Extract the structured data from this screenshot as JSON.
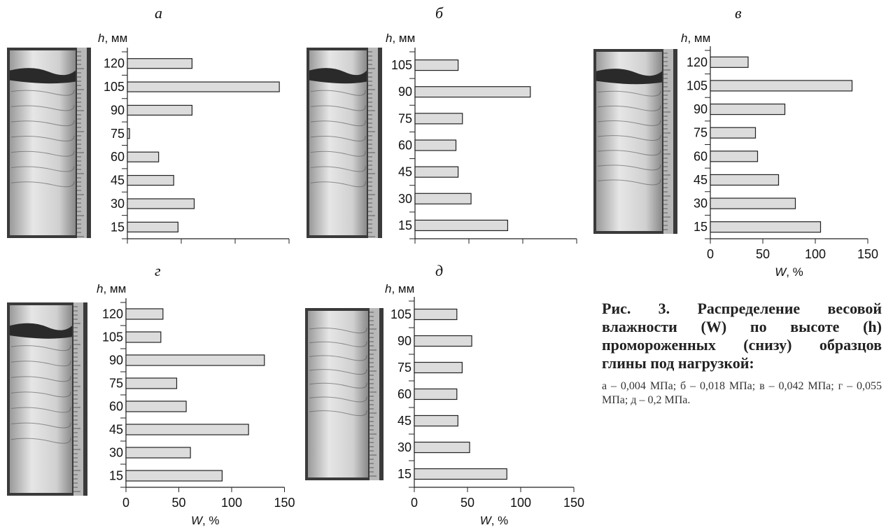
{
  "panels": [
    {
      "letter": "а",
      "ylabel_h": "h",
      "ylabel_unit": ", мм",
      "xlabel_w": "",
      "xlabel_unit": "",
      "chart_data": {
        "type": "bar",
        "orientation": "horizontal",
        "categories": [
          "120",
          "105",
          "90",
          "75",
          "60",
          "45",
          "30",
          "15"
        ],
        "values": [
          60,
          141,
          60,
          2,
          29,
          43,
          62,
          47
        ],
        "xlim": [
          0,
          150
        ],
        "xticks": [],
        "ylabel": "h, мм",
        "xlabel": ""
      }
    },
    {
      "letter": "б",
      "ylabel_h": "h",
      "ylabel_unit": ", мм",
      "xlabel_w": "",
      "xlabel_unit": "",
      "chart_data": {
        "type": "bar",
        "orientation": "horizontal",
        "categories": [
          "105",
          "90",
          "75",
          "60",
          "45",
          "30",
          "15"
        ],
        "values": [
          40,
          107,
          44,
          38,
          40,
          52,
          86
        ],
        "xlim": [
          0,
          150
        ],
        "xticks": [],
        "ylabel": "h, мм",
        "xlabel": ""
      }
    },
    {
      "letter": "в",
      "ylabel_h": "h",
      "ylabel_unit": ", мм",
      "xlabel_w": "W",
      "xlabel_unit": ", %",
      "chart_data": {
        "type": "bar",
        "orientation": "horizontal",
        "categories": [
          "120",
          "105",
          "90",
          "75",
          "60",
          "45",
          "30",
          "15"
        ],
        "values": [
          36,
          135,
          71,
          43,
          45,
          65,
          81,
          105
        ],
        "xlim": [
          0,
          150
        ],
        "xticks": [
          "0",
          "50",
          "100",
          "150"
        ],
        "ylabel": "h, мм",
        "xlabel": "W, %"
      }
    },
    {
      "letter": "г",
      "ylabel_h": "h",
      "ylabel_unit": ", мм",
      "xlabel_w": "W",
      "xlabel_unit": ", %",
      "chart_data": {
        "type": "bar",
        "orientation": "horizontal",
        "categories": [
          "120",
          "105",
          "90",
          "75",
          "60",
          "45",
          "30",
          "15"
        ],
        "values": [
          35,
          33,
          131,
          48,
          57,
          116,
          61,
          91
        ],
        "xlim": [
          0,
          150
        ],
        "xticks": [
          "0",
          "50",
          "100",
          "150"
        ],
        "ylabel": "h, мм",
        "xlabel": "W, %"
      }
    },
    {
      "letter": "д",
      "ylabel_h": "h",
      "ylabel_unit": ", мм",
      "xlabel_w": "W",
      "xlabel_unit": ", %",
      "chart_data": {
        "type": "bar",
        "orientation": "horizontal",
        "categories": [
          "105",
          "90",
          "75",
          "60",
          "45",
          "30",
          "15"
        ],
        "values": [
          40,
          54,
          45,
          40,
          41,
          52,
          87
        ],
        "xlim": [
          0,
          150
        ],
        "xticks": [
          "0",
          "50",
          "100",
          "150"
        ],
        "ylabel": "h, мм",
        "xlabel": "W, %"
      }
    }
  ],
  "caption": {
    "title": "Рис. 3. Распределение весовой влажности (W) по высоте (h) промороженных (снизу) образцов глины под нагрузкой:",
    "body": "а – 0,004 МПа; б – 0,018 МПа; в – 0,042 МПа; г – 0,055 МПа; д – 0,2 МПа."
  },
  "colors": {
    "bar_fill": "#dcdcdc",
    "bar_stroke": "#222222",
    "axis": "#222222"
  }
}
